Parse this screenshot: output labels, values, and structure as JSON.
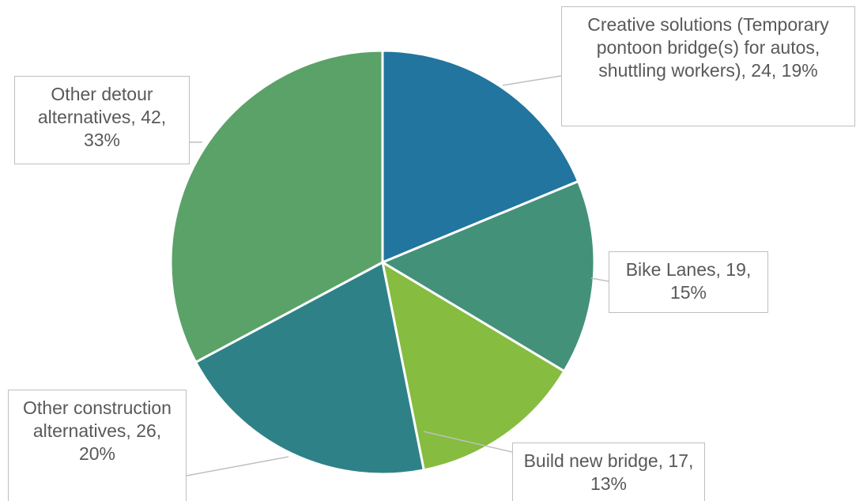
{
  "chart_data": {
    "type": "pie",
    "value_labels": [
      "Creative solutions (Temporary pontoon bridge(s) for autos, shuttling workers), 24, 19%",
      "Bike Lanes, 19, 15%",
      "Build new bridge, 17, 13%",
      "Other construction alternatives, 26, 20%",
      "Other detour alternatives, 42, 33%"
    ],
    "values": [
      24,
      19,
      17,
      26,
      42
    ],
    "colors": [
      "#21759e",
      "#44917a",
      "#86bc3f",
      "#2e8287",
      "#5ba268"
    ]
  }
}
